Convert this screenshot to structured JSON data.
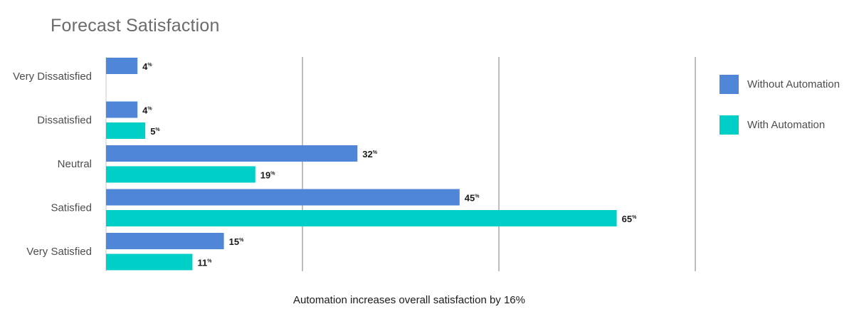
{
  "chart_data": {
    "type": "bar",
    "orientation": "horizontal",
    "title": "Forecast Satisfaction",
    "caption": "Automation increases overall satisfaction by 16%",
    "categories": [
      "Very Dissatisfied",
      "Dissatisfied",
      "Neutral",
      "Satisfied",
      "Very Satisfied"
    ],
    "unit": "%",
    "series": [
      {
        "name": "Without Automation",
        "color": "#4f86d8",
        "values": [
          4,
          4,
          32,
          45,
          15
        ]
      },
      {
        "name": "With Automation",
        "color": "#00cfc7",
        "values": [
          null,
          5,
          19,
          65,
          11
        ]
      }
    ],
    "xlim": [
      0,
      75
    ],
    "grid": true,
    "legend": "right"
  }
}
